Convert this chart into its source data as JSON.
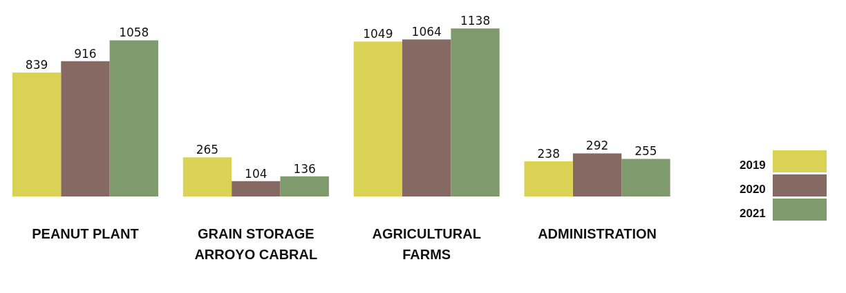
{
  "chart_data": {
    "type": "bar",
    "categories": [
      "PEANUT PLANT",
      "GRAIN STORAGE ARROYO CABRAL",
      "AGRICULTURAL FARMS",
      "ADMINISTRATION"
    ],
    "series": [
      {
        "name": "2019",
        "color": "#d9d254",
        "values": [
          839,
          265,
          1049,
          238
        ]
      },
      {
        "name": "2020",
        "color": "#866963",
        "values": [
          916,
          104,
          1064,
          292
        ]
      },
      {
        "name": "2021",
        "color": "#7f9b6e",
        "values": [
          1058,
          136,
          1138,
          255
        ]
      }
    ],
    "data_labels": true,
    "grid": false,
    "legend": "right"
  }
}
